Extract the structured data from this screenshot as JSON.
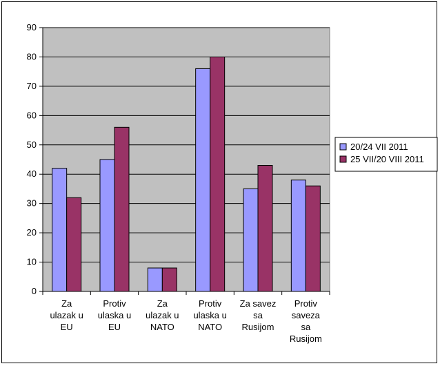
{
  "chart_data": {
    "type": "bar",
    "title": "",
    "xlabel": "",
    "ylabel": "",
    "ylim": [
      0,
      90
    ],
    "yticks": [
      0,
      10,
      20,
      30,
      40,
      50,
      60,
      70,
      80,
      90
    ],
    "grid": true,
    "legend_position": "right",
    "categories": [
      [
        "Za",
        "ulazak u",
        "EU"
      ],
      [
        "Protiv",
        "ulaska u",
        "EU"
      ],
      [
        "Za",
        "ulazak u",
        "NATO"
      ],
      [
        "Protiv",
        "ulaska u",
        "NATO"
      ],
      [
        "Za savez",
        "sa",
        "Rusijom"
      ],
      [
        "Protiv",
        "saveza",
        "sa",
        "Rusijom"
      ]
    ],
    "series": [
      {
        "name": "20/24 VII 2011",
        "color": "#9999ff",
        "values": [
          42,
          45,
          8,
          76,
          35,
          38
        ]
      },
      {
        "name": "25 VII/20 VIII 2011",
        "color": "#993366",
        "values": [
          32,
          56,
          8,
          80,
          43,
          36
        ]
      }
    ],
    "plot_area_color": "#c0c0c0"
  }
}
